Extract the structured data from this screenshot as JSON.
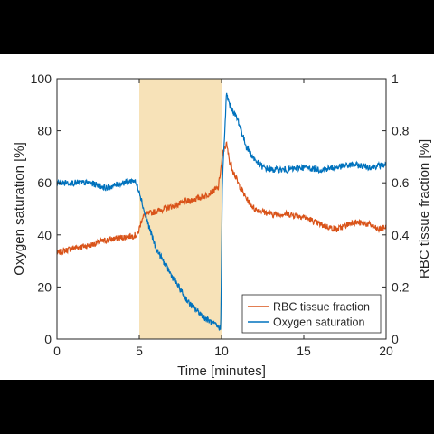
{
  "chart_data": {
    "type": "line",
    "xlabel": "Time [minutes]",
    "ylabel_left": "Oxygen saturation [%]",
    "ylabel_right": "RBC tissue fraction [%]",
    "xlim": [
      0,
      20
    ],
    "ylim_left": [
      0,
      100
    ],
    "ylim_right": [
      0,
      1
    ],
    "x_ticks": [
      "0",
      "5",
      "10",
      "15",
      "20"
    ],
    "y_left_ticks": [
      "0",
      "20",
      "40",
      "60",
      "80",
      "100"
    ],
    "y_right_ticks": [
      "0",
      "0.2",
      "0.4",
      "0.6",
      "0.8",
      "1"
    ],
    "grid": false,
    "legend_position": "lower-right",
    "shaded_region": {
      "x_start": 5,
      "x_end": 10,
      "color": "#f7e2b8"
    },
    "series": [
      {
        "name": "RBC tissue fraction",
        "axis": "right",
        "color": "#d95319",
        "x": [
          0,
          1,
          2,
          3,
          4,
          4.9,
          5.2,
          5.5,
          6,
          7,
          8,
          9,
          9.8,
          10.1,
          10.3,
          10.5,
          11,
          11.5,
          12,
          13,
          14,
          15,
          16,
          17,
          18,
          19,
          19.5,
          20
        ],
        "values": [
          0.33,
          0.35,
          0.36,
          0.38,
          0.39,
          0.4,
          0.47,
          0.48,
          0.49,
          0.51,
          0.53,
          0.55,
          0.58,
          0.72,
          0.75,
          0.68,
          0.6,
          0.54,
          0.5,
          0.48,
          0.48,
          0.47,
          0.44,
          0.42,
          0.45,
          0.44,
          0.42,
          0.43
        ]
      },
      {
        "name": "Oxygen saturation",
        "axis": "left",
        "color": "#0072bd",
        "x": [
          0,
          1,
          2,
          3,
          4,
          4.7,
          5.0,
          5.3,
          6,
          7,
          8,
          9,
          9.95,
          10.05,
          10.3,
          10.5,
          11,
          11.5,
          12,
          12.5,
          13,
          14,
          15,
          16,
          17,
          18,
          19,
          20
        ],
        "values": [
          60,
          60,
          60,
          58,
          60,
          61,
          57,
          49,
          35,
          24,
          14,
          8,
          4,
          60,
          94,
          90,
          84,
          74,
          69,
          66,
          65,
          65,
          66,
          65,
          66,
          67,
          66,
          67
        ]
      }
    ]
  }
}
